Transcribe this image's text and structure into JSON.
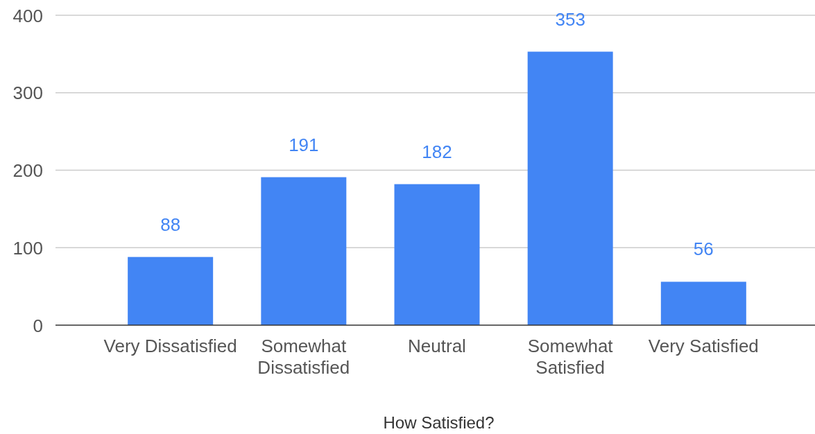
{
  "chart_data": {
    "type": "bar",
    "xlabel": "How Satisfied?",
    "categories": [
      "Very Dissatisfied",
      "Somewhat Dissatisfied",
      "Neutral",
      "Somewhat Satisfied",
      "Very Satisfied"
    ],
    "values": [
      88,
      191,
      182,
      353,
      56
    ],
    "color": "#4285f4",
    "ylim": [
      0,
      400
    ],
    "yticks": [
      0,
      100,
      200,
      300,
      400
    ],
    "grid": "y",
    "data_labels": true
  }
}
